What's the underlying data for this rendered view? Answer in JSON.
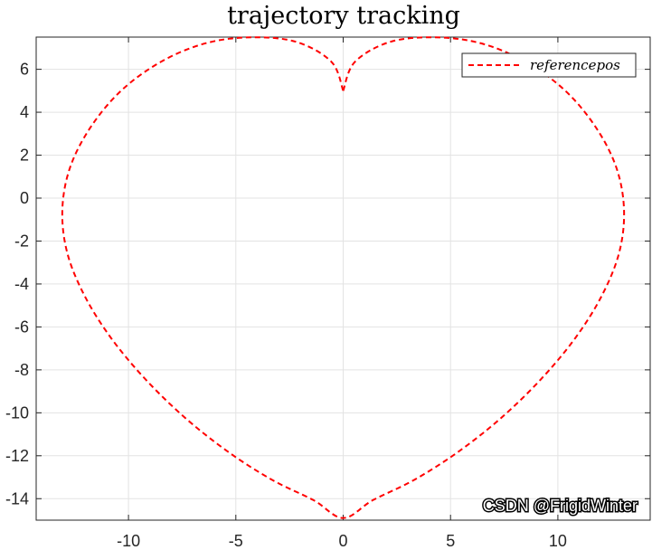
{
  "chart_data": {
    "type": "line",
    "title": "trajectory tracking",
    "xlabel": "",
    "ylabel": "",
    "xlim": [
      -14.3,
      14.3
    ],
    "ylim": [
      -15,
      7.5
    ],
    "grid": true,
    "legend_placement": "top-right",
    "x_ticks": [
      -10,
      -5,
      0,
      5,
      10
    ],
    "y_ticks": [
      6,
      4,
      2,
      0,
      -2,
      -4,
      -6,
      -8,
      -10,
      -12,
      -14
    ],
    "x_tick_labels": [
      "-10",
      "-5",
      "0",
      "5",
      "10"
    ],
    "y_tick_labels": [
      "6",
      "4",
      "2",
      "0",
      "-2",
      "-4",
      "-6",
      "-8",
      "-10",
      "-12",
      "-14"
    ],
    "series": [
      {
        "name": "referencepos",
        "color": "#ff0000",
        "line_style": "dashed",
        "x": [
          0,
          0.54,
          2.16,
          4.24,
          6.34,
          8.38,
          10.26,
          11.72,
          12.71,
          13.08,
          12.86,
          12.06,
          10.81,
          9.18,
          7.31,
          5.3,
          3.28,
          1.38,
          0,
          -1.38,
          -3.28,
          -5.3,
          -7.31,
          -9.18,
          -10.81,
          -12.06,
          -12.86,
          -13.08,
          -12.71,
          -11.72,
          -10.26,
          -8.38,
          -6.34,
          -4.24,
          -2.16,
          -0.54,
          0
        ],
        "y": [
          5,
          6.34,
          7.27,
          7.49,
          7.23,
          6.41,
          5.08,
          3.37,
          1.46,
          -0.52,
          -2.52,
          -4.52,
          -6.52,
          -8.47,
          -10.28,
          -11.86,
          -13.14,
          -14.07,
          -14.9,
          -14.07,
          -13.14,
          -11.86,
          -10.28,
          -8.47,
          -6.52,
          -4.52,
          -2.52,
          -0.52,
          1.46,
          3.37,
          5.08,
          6.41,
          7.23,
          7.49,
          7.27,
          6.34,
          5
        ]
      }
    ]
  },
  "watermark": "CSDN @FrigidWinter"
}
